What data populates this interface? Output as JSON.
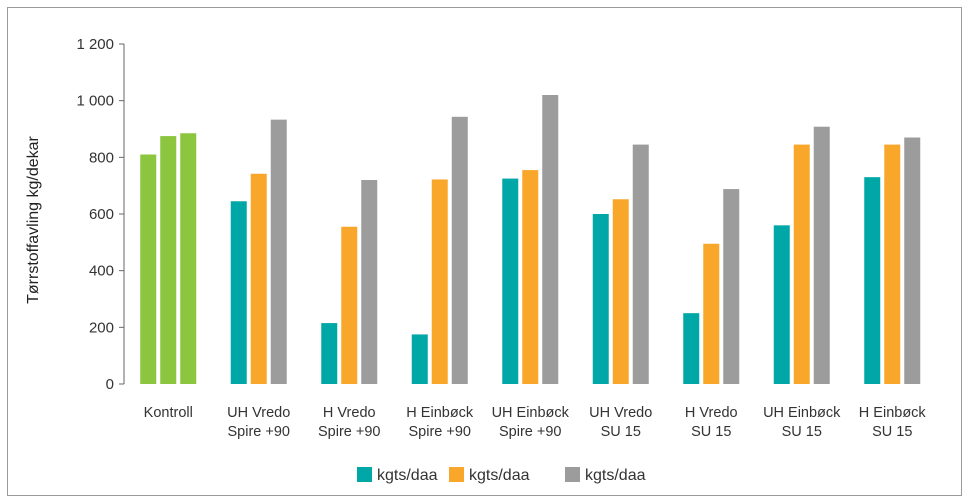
{
  "chart_data": {
    "type": "bar",
    "title": "",
    "xlabel": "",
    "ylabel": "Tørrstoffavling kg/dekar",
    "ylim": [
      0,
      1200
    ],
    "yticks": [
      0,
      200,
      400,
      600,
      800,
      1000,
      1200
    ],
    "ytick_labels": [
      "0",
      "200",
      "400",
      "600",
      "800",
      "1 000",
      "1 200"
    ],
    "grid": false,
    "legend_position": "bottom",
    "categories": [
      [
        "Kontroll"
      ],
      [
        "UH Vredo",
        "Spire +90"
      ],
      [
        "H Vredo",
        "Spire +90"
      ],
      [
        "H Einbøck",
        "Spire +90"
      ],
      [
        "UH Einbøck",
        "Spire +90"
      ],
      [
        "UH Vredo",
        "SU 15"
      ],
      [
        "H Vredo",
        "SU 15"
      ],
      [
        "UH Einbøck",
        "SU 15"
      ],
      [
        "H Einbøck",
        "SU 15"
      ]
    ],
    "series": [
      {
        "name": "kgts/daa",
        "color": "#00a7a7",
        "values": [
          810,
          645,
          215,
          175,
          725,
          600,
          250,
          560,
          730
        ]
      },
      {
        "name": "kgts/daa",
        "color": "#f8a72a",
        "values": [
          875,
          742,
          555,
          722,
          755,
          652,
          495,
          845,
          845
        ]
      },
      {
        "name": "kgts/daa",
        "color": "#9c9c9d",
        "values": [
          885,
          933,
          720,
          943,
          1020,
          845,
          688,
          908,
          870
        ]
      }
    ],
    "control_color": "#8cc63f"
  }
}
